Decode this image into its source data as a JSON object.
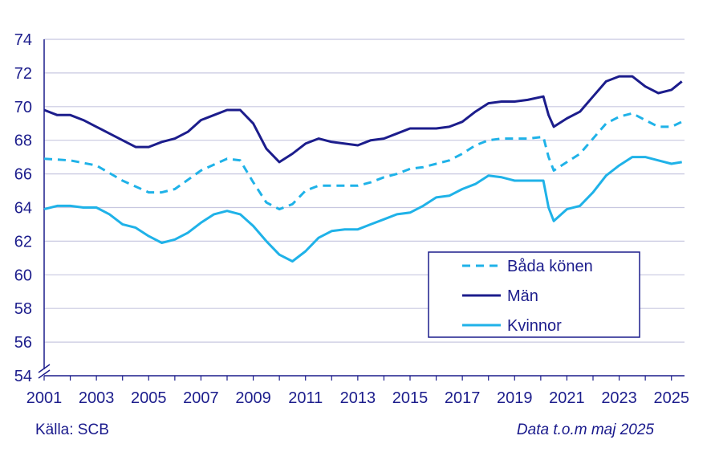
{
  "chart_data": {
    "type": "line",
    "title": "",
    "xlabel": "",
    "ylabel": "",
    "ylim": [
      54,
      74
    ],
    "xlim": [
      2001.0,
      2025.5
    ],
    "yticks": [
      "54",
      "56",
      "58",
      "60",
      "62",
      "64",
      "66",
      "68",
      "70",
      "72",
      "74"
    ],
    "xticks": [
      "2001",
      "2003",
      "2005",
      "2007",
      "2009",
      "2011",
      "2013",
      "2015",
      "2017",
      "2019",
      "2021",
      "2023",
      "2025"
    ],
    "grid": "horizontal",
    "axis_break": true,
    "legend_position": "bottom-right",
    "series": [
      {
        "name": "Båda könen",
        "color": "#1FB2E8",
        "dash": "dashed",
        "points": [
          [
            2001.0,
            66.9
          ],
          [
            2002.0,
            66.8
          ],
          [
            2003.0,
            66.5
          ],
          [
            2004.0,
            65.6
          ],
          [
            2005.0,
            64.9
          ],
          [
            2005.5,
            64.9
          ],
          [
            2006.0,
            65.1
          ],
          [
            2007.0,
            66.2
          ],
          [
            2008.0,
            66.9
          ],
          [
            2008.5,
            66.8
          ],
          [
            2009.0,
            65.5
          ],
          [
            2009.5,
            64.3
          ],
          [
            2010.0,
            63.9
          ],
          [
            2010.5,
            64.2
          ],
          [
            2011.0,
            65.0
          ],
          [
            2011.5,
            65.3
          ],
          [
            2012.0,
            65.3
          ],
          [
            2012.5,
            65.3
          ],
          [
            2013.0,
            65.3
          ],
          [
            2013.5,
            65.5
          ],
          [
            2014.0,
            65.8
          ],
          [
            2014.5,
            66.0
          ],
          [
            2015.0,
            66.3
          ],
          [
            2015.5,
            66.4
          ],
          [
            2016.0,
            66.6
          ],
          [
            2016.5,
            66.8
          ],
          [
            2017.0,
            67.2
          ],
          [
            2017.5,
            67.7
          ],
          [
            2018.0,
            68.0
          ],
          [
            2018.5,
            68.1
          ],
          [
            2019.0,
            68.1
          ],
          [
            2019.5,
            68.1
          ],
          [
            2020.1,
            68.2
          ],
          [
            2020.3,
            67.0
          ],
          [
            2020.5,
            66.2
          ],
          [
            2021.0,
            66.7
          ],
          [
            2021.5,
            67.2
          ],
          [
            2022.0,
            68.1
          ],
          [
            2022.5,
            69.0
          ],
          [
            2023.0,
            69.4
          ],
          [
            2023.5,
            69.6
          ],
          [
            2024.0,
            69.2
          ],
          [
            2024.5,
            68.8
          ],
          [
            2025.0,
            68.8
          ],
          [
            2025.4,
            69.1
          ]
        ]
      },
      {
        "name": "Män",
        "color": "#1C1D8C",
        "dash": "solid",
        "points": [
          [
            2001.0,
            69.8
          ],
          [
            2001.5,
            69.5
          ],
          [
            2002.0,
            69.5
          ],
          [
            2002.5,
            69.2
          ],
          [
            2003.0,
            68.8
          ],
          [
            2003.5,
            68.4
          ],
          [
            2004.0,
            68.0
          ],
          [
            2004.5,
            67.6
          ],
          [
            2005.0,
            67.6
          ],
          [
            2005.5,
            67.9
          ],
          [
            2006.0,
            68.1
          ],
          [
            2006.5,
            68.5
          ],
          [
            2007.0,
            69.2
          ],
          [
            2007.5,
            69.5
          ],
          [
            2008.0,
            69.8
          ],
          [
            2008.5,
            69.8
          ],
          [
            2009.0,
            69.0
          ],
          [
            2009.5,
            67.5
          ],
          [
            2010.0,
            66.7
          ],
          [
            2010.5,
            67.2
          ],
          [
            2011.0,
            67.8
          ],
          [
            2011.5,
            68.1
          ],
          [
            2012.0,
            67.9
          ],
          [
            2012.5,
            67.8
          ],
          [
            2013.0,
            67.7
          ],
          [
            2013.5,
            68.0
          ],
          [
            2014.0,
            68.1
          ],
          [
            2014.5,
            68.4
          ],
          [
            2015.0,
            68.7
          ],
          [
            2015.5,
            68.7
          ],
          [
            2016.0,
            68.7
          ],
          [
            2016.5,
            68.8
          ],
          [
            2017.0,
            69.1
          ],
          [
            2017.5,
            69.7
          ],
          [
            2018.0,
            70.2
          ],
          [
            2018.5,
            70.3
          ],
          [
            2019.0,
            70.3
          ],
          [
            2019.5,
            70.4
          ],
          [
            2020.1,
            70.6
          ],
          [
            2020.3,
            69.5
          ],
          [
            2020.5,
            68.8
          ],
          [
            2021.0,
            69.3
          ],
          [
            2021.5,
            69.7
          ],
          [
            2022.0,
            70.6
          ],
          [
            2022.5,
            71.5
          ],
          [
            2023.0,
            71.8
          ],
          [
            2023.5,
            71.8
          ],
          [
            2024.0,
            71.2
          ],
          [
            2024.5,
            70.8
          ],
          [
            2025.0,
            71.0
          ],
          [
            2025.4,
            71.5
          ]
        ]
      },
      {
        "name": "Kvinnor",
        "color": "#1FB2E8",
        "dash": "solid",
        "points": [
          [
            2001.0,
            63.9
          ],
          [
            2001.5,
            64.1
          ],
          [
            2002.0,
            64.1
          ],
          [
            2002.5,
            64.0
          ],
          [
            2003.0,
            64.0
          ],
          [
            2003.5,
            63.6
          ],
          [
            2004.0,
            63.0
          ],
          [
            2004.5,
            62.8
          ],
          [
            2005.0,
            62.3
          ],
          [
            2005.5,
            61.9
          ],
          [
            2006.0,
            62.1
          ],
          [
            2006.5,
            62.5
          ],
          [
            2007.0,
            63.1
          ],
          [
            2007.5,
            63.6
          ],
          [
            2008.0,
            63.8
          ],
          [
            2008.5,
            63.6
          ],
          [
            2009.0,
            62.9
          ],
          [
            2009.5,
            62.0
          ],
          [
            2010.0,
            61.2
          ],
          [
            2010.5,
            60.8
          ],
          [
            2011.0,
            61.4
          ],
          [
            2011.5,
            62.2
          ],
          [
            2012.0,
            62.6
          ],
          [
            2012.5,
            62.7
          ],
          [
            2013.0,
            62.7
          ],
          [
            2013.5,
            63.0
          ],
          [
            2014.0,
            63.3
          ],
          [
            2014.5,
            63.6
          ],
          [
            2015.0,
            63.7
          ],
          [
            2015.5,
            64.1
          ],
          [
            2016.0,
            64.6
          ],
          [
            2016.5,
            64.7
          ],
          [
            2017.0,
            65.1
          ],
          [
            2017.5,
            65.4
          ],
          [
            2018.0,
            65.9
          ],
          [
            2018.5,
            65.8
          ],
          [
            2019.0,
            65.6
          ],
          [
            2019.5,
            65.6
          ],
          [
            2020.1,
            65.6
          ],
          [
            2020.3,
            64.0
          ],
          [
            2020.5,
            63.2
          ],
          [
            2021.0,
            63.9
          ],
          [
            2021.5,
            64.1
          ],
          [
            2022.0,
            64.9
          ],
          [
            2022.5,
            65.9
          ],
          [
            2023.0,
            66.5
          ],
          [
            2023.5,
            67.0
          ],
          [
            2024.0,
            67.0
          ],
          [
            2024.5,
            66.8
          ],
          [
            2025.0,
            66.6
          ],
          [
            2025.4,
            66.7
          ]
        ]
      }
    ]
  },
  "footer": {
    "source": "Källa: SCB",
    "note": "Data t.o.m maj 2025"
  },
  "colors": {
    "axis_text": "#1C1D8C",
    "grid": "#c8c8e0",
    "axis_line": "#1C1D8C"
  }
}
